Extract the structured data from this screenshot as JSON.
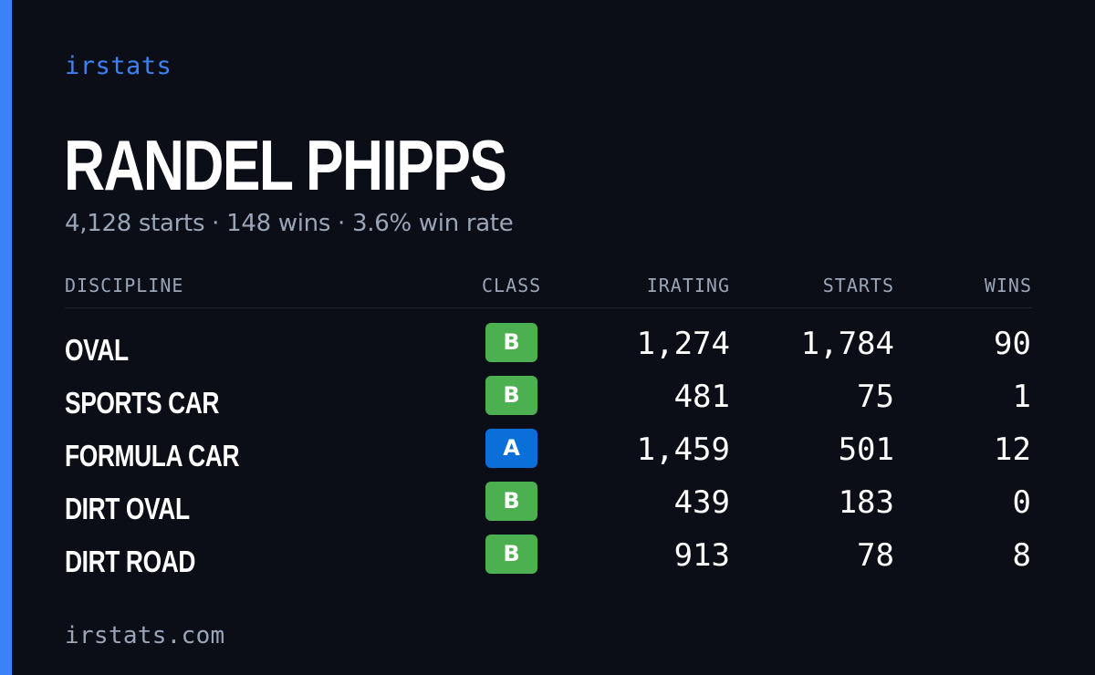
{
  "brand": "irstats",
  "driver": {
    "name": "RANDEL PHIPPS",
    "summary": "4,128 starts · 148 wins · 3.6% win rate"
  },
  "table": {
    "headers": {
      "discipline": "DISCIPLINE",
      "class": "CLASS",
      "irating": "IRATING",
      "starts": "STARTS",
      "wins": "WINS"
    },
    "rows": [
      {
        "discipline": "OVAL",
        "class": "B",
        "irating": "1,274",
        "starts": "1,784",
        "wins": "90"
      },
      {
        "discipline": "SPORTS CAR",
        "class": "B",
        "irating": "481",
        "starts": "75",
        "wins": "1"
      },
      {
        "discipline": "FORMULA CAR",
        "class": "A",
        "irating": "1,459",
        "starts": "501",
        "wins": "12"
      },
      {
        "discipline": "DIRT OVAL",
        "class": "B",
        "irating": "439",
        "starts": "183",
        "wins": "0"
      },
      {
        "discipline": "DIRT ROAD",
        "class": "B",
        "irating": "913",
        "starts": "78",
        "wins": "8"
      }
    ]
  },
  "class_colors": {
    "A": "#0a6fd8",
    "B": "#4caf50"
  },
  "footer": "irstats.com"
}
